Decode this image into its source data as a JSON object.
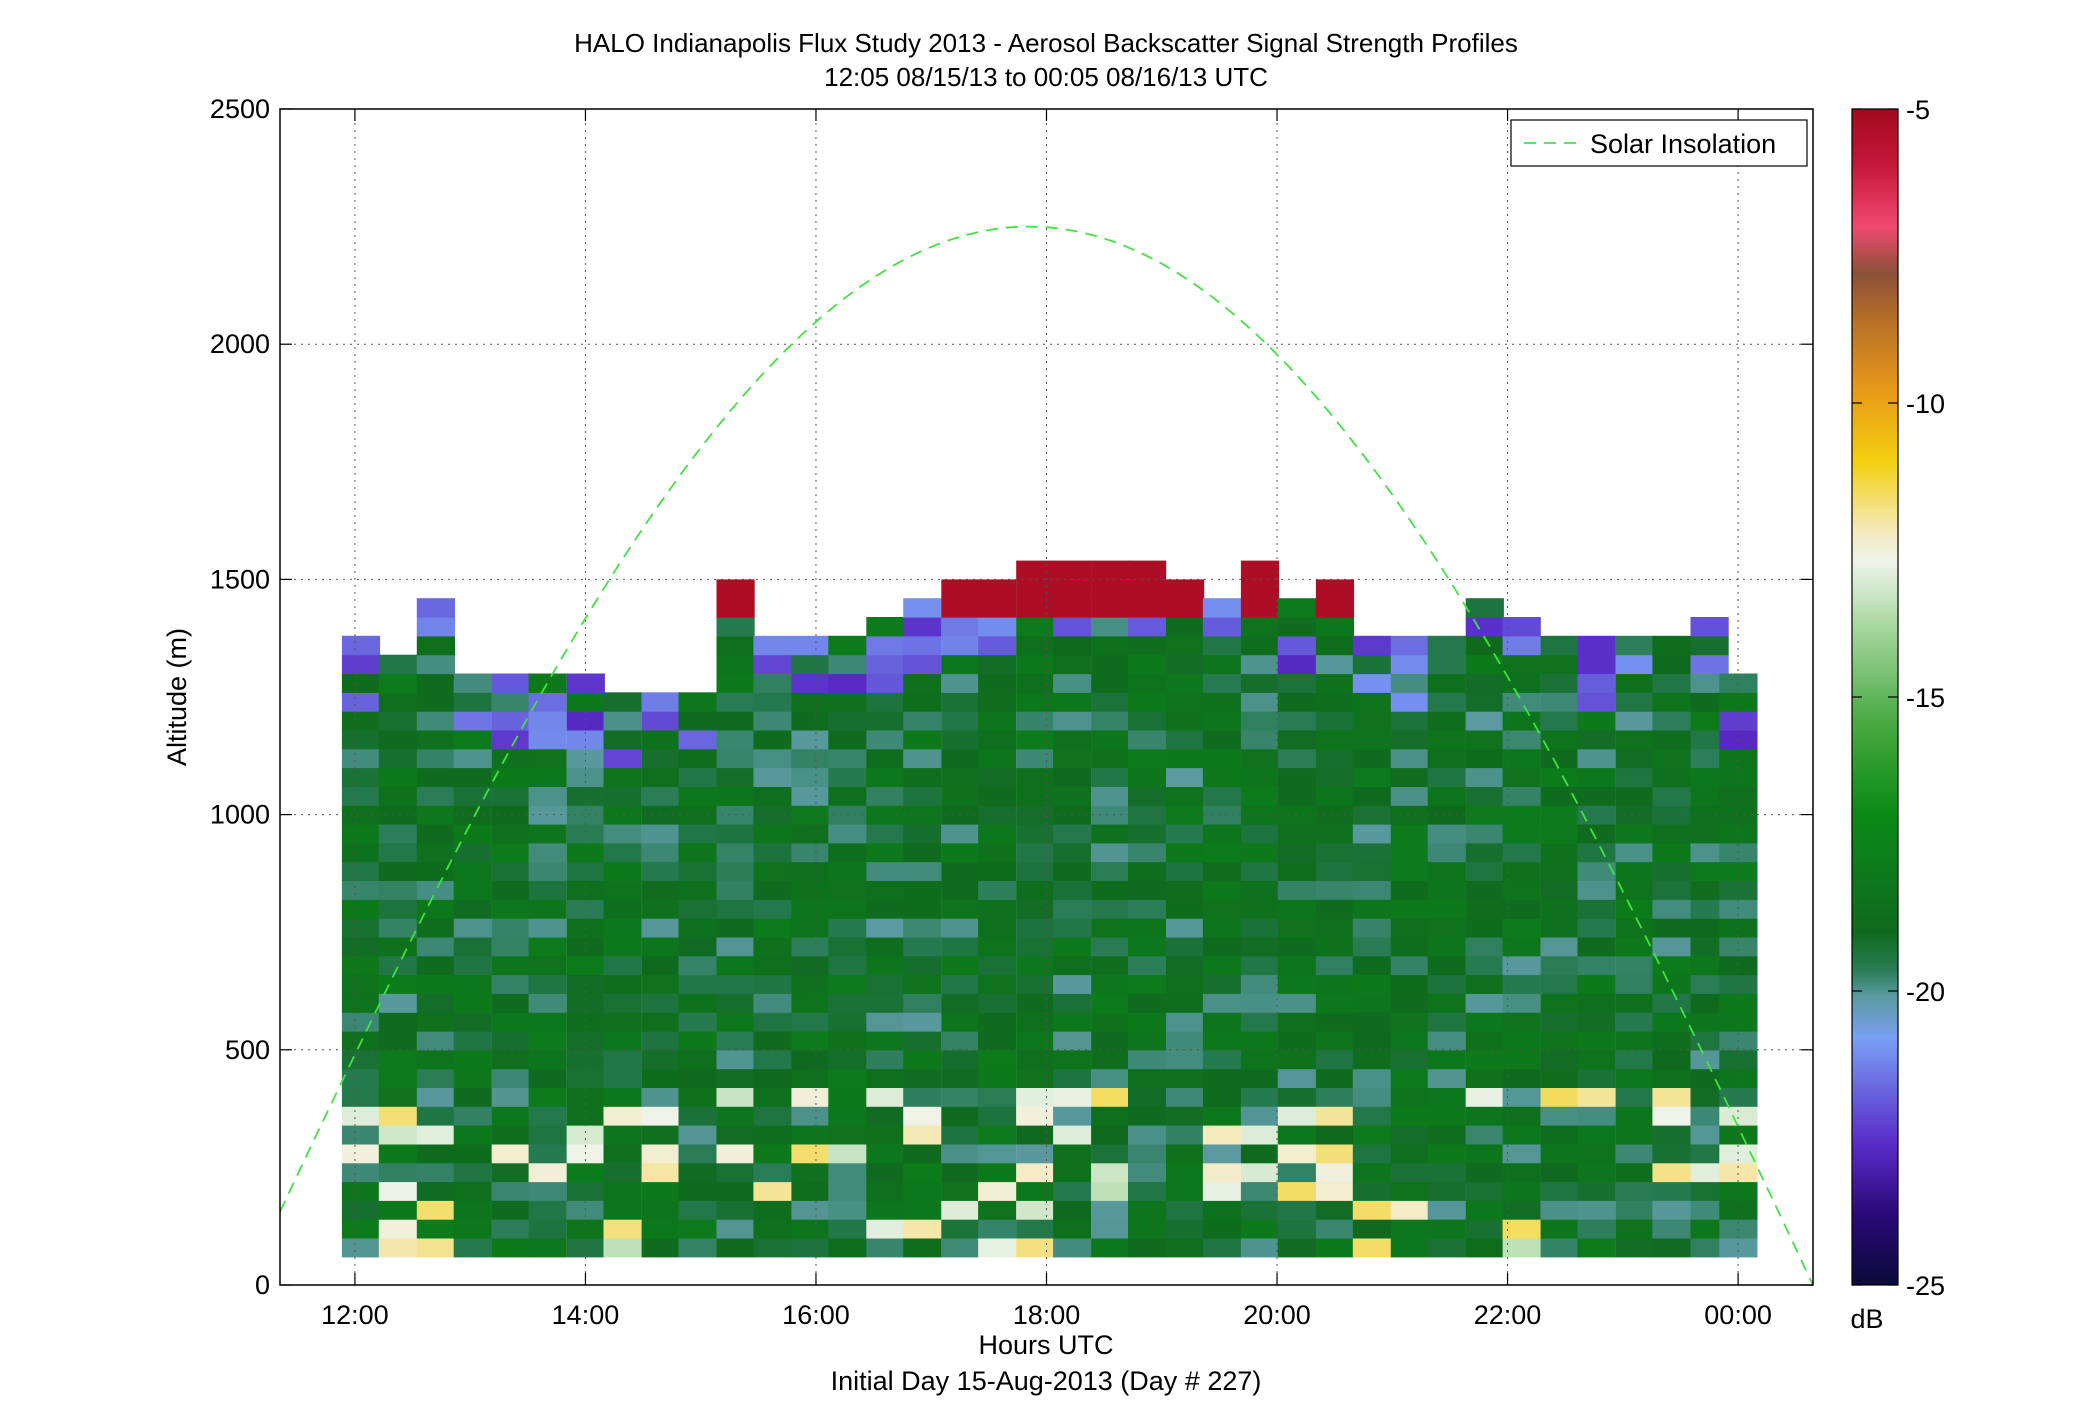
{
  "chart_data": {
    "type": "heatmap",
    "title": "HALO Indianapolis Flux Study 2013 - Aerosol Backscatter Signal Strength Profiles",
    "subtitle": "12:05 08/15/13 to 00:05 08/16/13  UTC",
    "xlabel": "Hours UTC",
    "xlabel2": "Initial Day 15-Aug-2013 (Day # 227)",
    "ylabel": "Altitude (m)",
    "x_units": "hours UTC (12 = 12:00, 24 = 00:00 next day)",
    "xlim": [
      11.35,
      24.65
    ],
    "ylim": [
      0,
      2500
    ],
    "x_ticks": [
      12,
      14,
      16,
      18,
      20,
      22,
      24
    ],
    "x_tick_labels": [
      "12:00",
      "14:00",
      "16:00",
      "18:00",
      "20:00",
      "22:00",
      "00:00"
    ],
    "y_ticks": [
      0,
      500,
      1000,
      1500,
      2000,
      2500
    ],
    "y_tick_labels": [
      "0",
      "500",
      "1000",
      "1500",
      "2000",
      "2500"
    ],
    "grid": true,
    "grid_style": "dotted",
    "legend": {
      "placement": "top-right",
      "entries": [
        {
          "label": "Solar Insolation",
          "style": "dashed",
          "color": "#44e044"
        }
      ]
    },
    "colorbar": {
      "label": "dB",
      "range": [
        -25,
        -5
      ],
      "ticks": [
        -5,
        -10,
        -15,
        -20,
        -25
      ],
      "tick_labels": [
        "-5",
        "-10",
        "-15",
        "-20",
        "-25"
      ],
      "colormap": "custom: navy-purple-blue-teal-green-pale-yellow-orange-brown-pink-crimson"
    },
    "time_bins_hours": [
      12.05,
      12.37,
      12.7,
      13.02,
      13.35,
      13.67,
      14.0,
      14.32,
      14.65,
      14.97,
      15.3,
      15.62,
      15.95,
      16.27,
      16.6,
      16.92,
      17.25,
      17.57,
      17.9,
      18.22,
      18.55,
      18.87,
      19.2,
      19.52,
      19.85,
      20.17,
      20.5,
      20.82,
      21.15,
      21.47,
      21.8,
      22.12,
      22.45,
      22.77,
      23.1,
      23.42,
      23.75,
      24.0
    ],
    "altitude_bin_m": 40,
    "solar_insolation_curve": {
      "description": "dashed half-sine, peak at 17.85 UTC",
      "peak_altitude_m": 2250,
      "start": [
        11.35,
        180
      ],
      "end": [
        24.65,
        0
      ]
    },
    "dominant_signal_db": -19,
    "max_layer_top_m": 1500,
    "profiles_boundary_layer_top_m": [
      1360,
      1340,
      1440,
      1300,
      1290,
      1290,
      1290,
      1250,
      1250,
      1250,
      1490,
      1380,
      1380,
      1360,
      1410,
      1440,
      1490,
      1490,
      1530,
      1530,
      1530,
      1530,
      1490,
      1460,
      1530,
      1440,
      1490,
      1360,
      1360,
      1380,
      1440,
      1410,
      1380,
      1350,
      1350,
      1350,
      1410,
      1290
    ]
  }
}
